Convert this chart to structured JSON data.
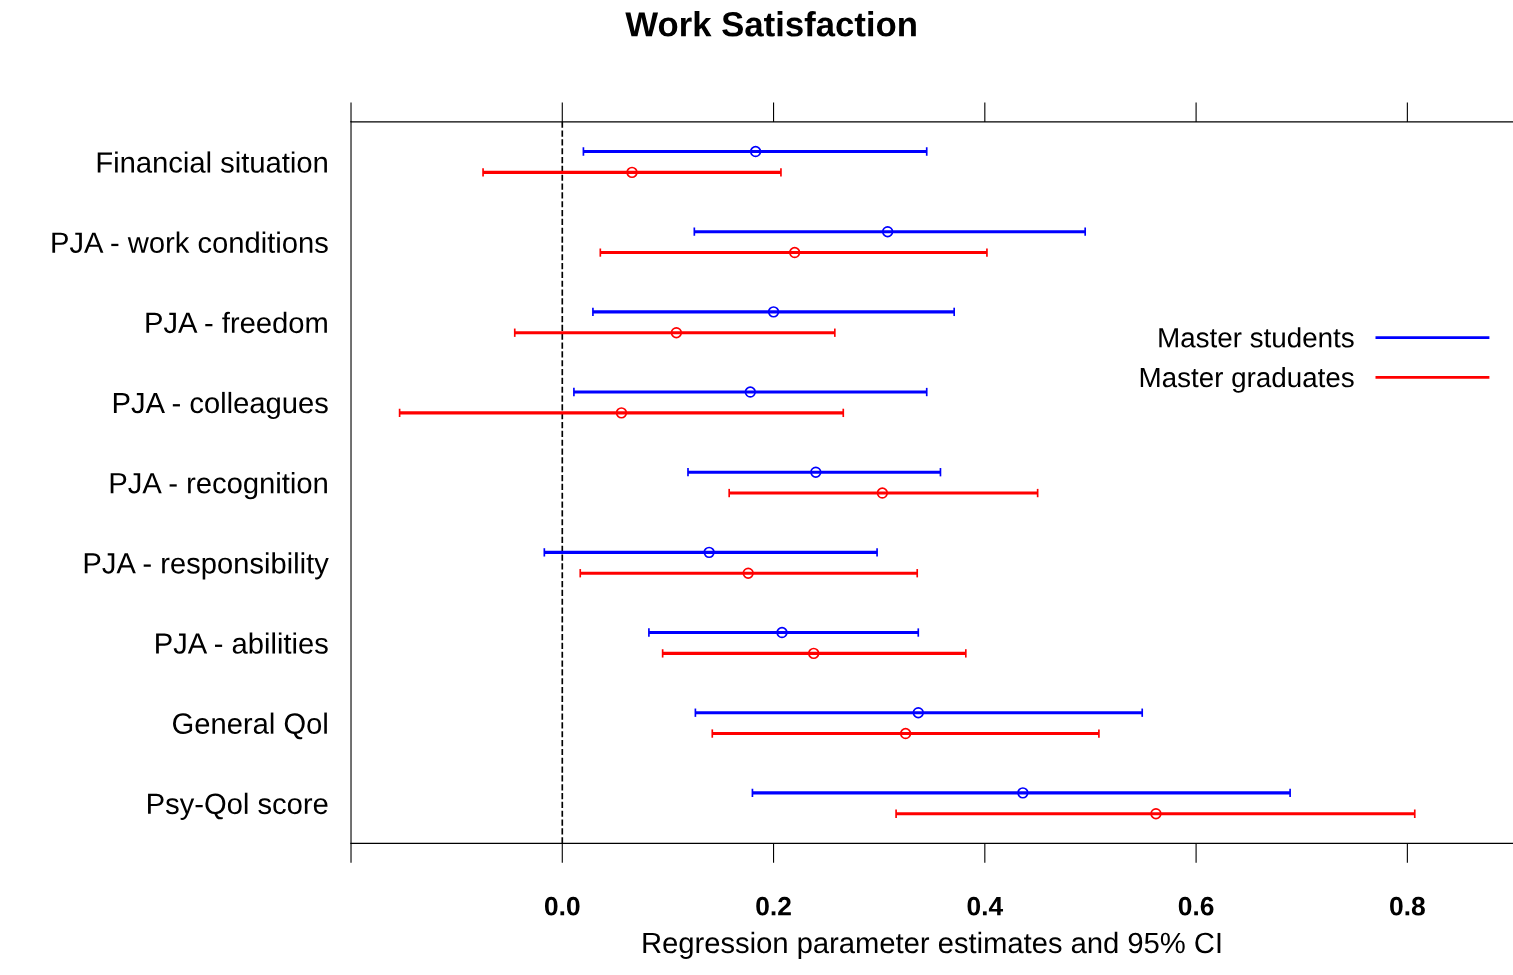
{
  "chart_data": {
    "type": "scatter",
    "title": "Work Satisfaction",
    "xlabel": "Regression parameter estimates and 95% CI",
    "orientation": "horizontal",
    "categories": [
      "Financial situation",
      "PJA - work conditions",
      "PJA - freedom",
      "PJA - colleagues",
      "PJA - recognition",
      "PJA - responsibility",
      "PJA - abilities",
      "General Qol",
      "Psy-Qol score"
    ],
    "series": [
      {
        "name": "Master students",
        "color": "#0000ff",
        "values": [
          0.183,
          0.308,
          0.2,
          0.178,
          0.24,
          0.139,
          0.208,
          0.337,
          0.436
        ],
        "errors": [
          [
            0.02,
            0.345
          ],
          [
            0.125,
            0.495
          ],
          [
            0.029,
            0.371
          ],
          [
            0.011,
            0.345
          ],
          [
            0.119,
            0.358
          ],
          [
            -0.017,
            0.298
          ],
          [
            0.082,
            0.337
          ],
          [
            0.126,
            0.549
          ],
          [
            0.18,
            0.689
          ]
        ]
      },
      {
        "name": "Master graduates",
        "color": "#ff0000",
        "values": [
          0.066,
          0.22,
          0.108,
          0.056,
          0.303,
          0.176,
          0.238,
          0.325,
          0.562
        ],
        "errors": [
          [
            -0.075,
            0.207
          ],
          [
            0.036,
            0.402
          ],
          [
            -0.045,
            0.258
          ],
          [
            -0.154,
            0.266
          ],
          [
            0.158,
            0.45
          ],
          [
            0.017,
            0.336
          ],
          [
            0.095,
            0.382
          ],
          [
            0.142,
            0.508
          ],
          [
            0.316,
            0.807
          ]
        ]
      }
    ],
    "xlim": [
      -0.2,
      0.9
    ],
    "xticks": [
      {
        "value": -0.2,
        "label": null
      },
      {
        "value": 0.0,
        "label": "0.0"
      },
      0.2,
      0.4,
      0.6,
      0.8
    ],
    "ref_lines": [
      {
        "axis": "x",
        "value": 0,
        "color": "#000000",
        "line_style": "dashed"
      }
    ],
    "marker": "circle",
    "legend": "right",
    "grid": false
  }
}
